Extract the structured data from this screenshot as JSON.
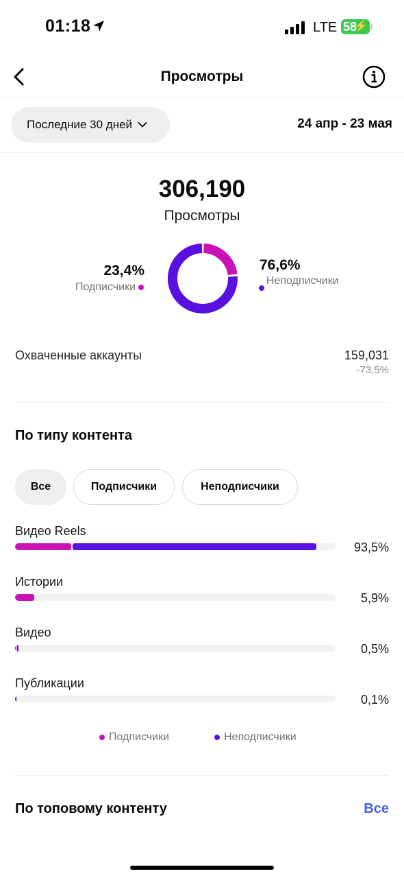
{
  "status_bar": {
    "time": "01:18",
    "network": "LTE",
    "battery": "58"
  },
  "nav": {
    "title": "Просмотры"
  },
  "period": {
    "selected": "Последние 30 дней",
    "date_range": "24 апр - 23 мая"
  },
  "summary": {
    "total_views": "306,190",
    "total_label": "Просмотры",
    "followers_pct": "23,4%",
    "followers_label": "Подписчики",
    "followers_value": 23.4,
    "nonfollowers_pct": "76,6%",
    "nonfollowers_label": "Неподписчики",
    "nonfollowers_value": 76.6
  },
  "reach": {
    "label": "Охваченные аккаунты",
    "value": "159,031",
    "change": "-73,5%"
  },
  "content_type": {
    "title": "По типу контента",
    "filters": [
      "Все",
      "Подписчики",
      "Неподписчики"
    ],
    "active_filter": "Все",
    "rows": [
      {
        "name": "Видео Reels",
        "pct": "93,5%",
        "followers_share": 17.5,
        "nonfollowers_share": 76.0
      },
      {
        "name": "Истории",
        "pct": "5,9%",
        "followers_share": 5.9,
        "nonfollowers_share": 0
      },
      {
        "name": "Видео",
        "pct": "0,5%",
        "followers_share": 0.2,
        "nonfollowers_share": 0.3
      },
      {
        "name": "Публикации",
        "pct": "0,1%",
        "followers_share": 0,
        "nonfollowers_share": 0.1
      }
    ],
    "legend": {
      "followers": "Подписчики",
      "nonfollowers": "Неподписчики"
    }
  },
  "top_content": {
    "title": "По топовому контенту",
    "link": "Все"
  },
  "colors": {
    "followers": "#c913b9",
    "nonfollowers": "#5a10e0",
    "link": "#4a5fe0"
  }
}
